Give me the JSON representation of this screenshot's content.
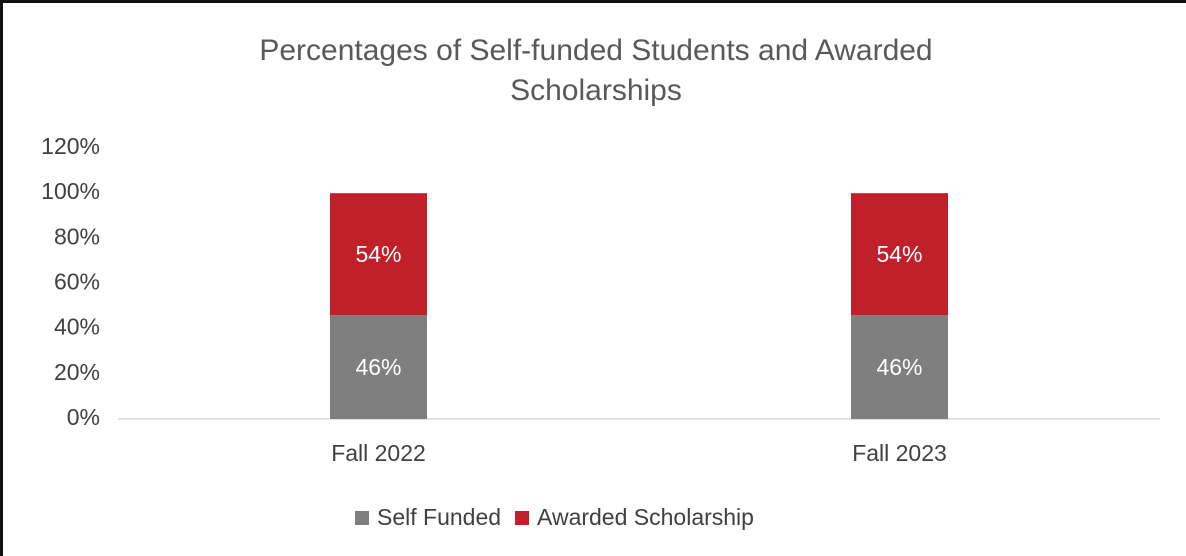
{
  "chart_data": {
    "type": "bar",
    "stacked": true,
    "title": "Percentages of Self-funded Students and Awarded Scholarships",
    "categories": [
      "Fall 2022",
      "Fall 2023"
    ],
    "series": [
      {
        "name": "Self Funded",
        "color": "#7f7f7f",
        "values": [
          46,
          46
        ],
        "value_labels": [
          "46%",
          "46%"
        ]
      },
      {
        "name": "Awarded Scholarship",
        "color": "#c0202a",
        "values": [
          54,
          54
        ],
        "value_labels": [
          "54%",
          "54%"
        ]
      }
    ],
    "ylim": [
      0,
      120
    ],
    "yticks": [
      {
        "value": 0,
        "label": "0%"
      },
      {
        "value": 20,
        "label": "20%"
      },
      {
        "value": 40,
        "label": "40%"
      },
      {
        "value": 60,
        "label": "60%"
      },
      {
        "value": 80,
        "label": "80%"
      },
      {
        "value": 100,
        "label": "100%"
      },
      {
        "value": 120,
        "label": "120%"
      }
    ],
    "grid": false,
    "legend": "bottom"
  }
}
